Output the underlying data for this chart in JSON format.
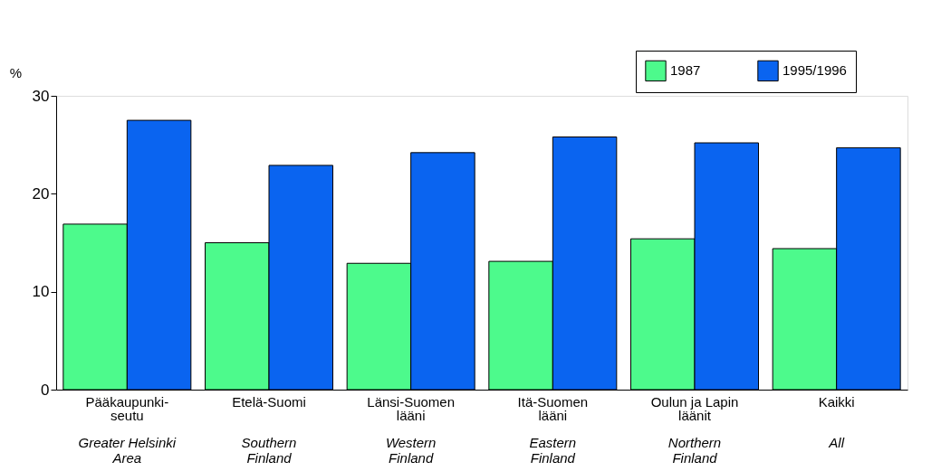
{
  "chart_data": {
    "type": "bar",
    "ylabel": "%",
    "categories": [
      "Pääkaupunki-\nseutu",
      "Etelä-Suomi",
      "Länsi-Suomen\nlääni",
      "Itä-Suomen\nlääni",
      "Oulun ja Lapin\nläänit",
      "Kaikki"
    ],
    "series": [
      {
        "name": "1987",
        "color": "#4dfa8c",
        "values": [
          16.9,
          15.0,
          12.9,
          13.1,
          15.4,
          14.4
        ]
      },
      {
        "name": "1995/1996",
        "color": "#0a64f0",
        "values": [
          27.5,
          22.9,
          24.2,
          25.8,
          25.2,
          24.7
        ]
      }
    ],
    "ylim": [
      0,
      30
    ],
    "yticks": [
      0,
      10,
      20,
      30
    ],
    "grid": false,
    "legend": "top right",
    "annotations": [
      "Greater Helsinki\nArea",
      "Southern\nFinland",
      "Western\nFinland",
      "Eastern\nFinland",
      "Northern\nFinland",
      "All"
    ]
  }
}
